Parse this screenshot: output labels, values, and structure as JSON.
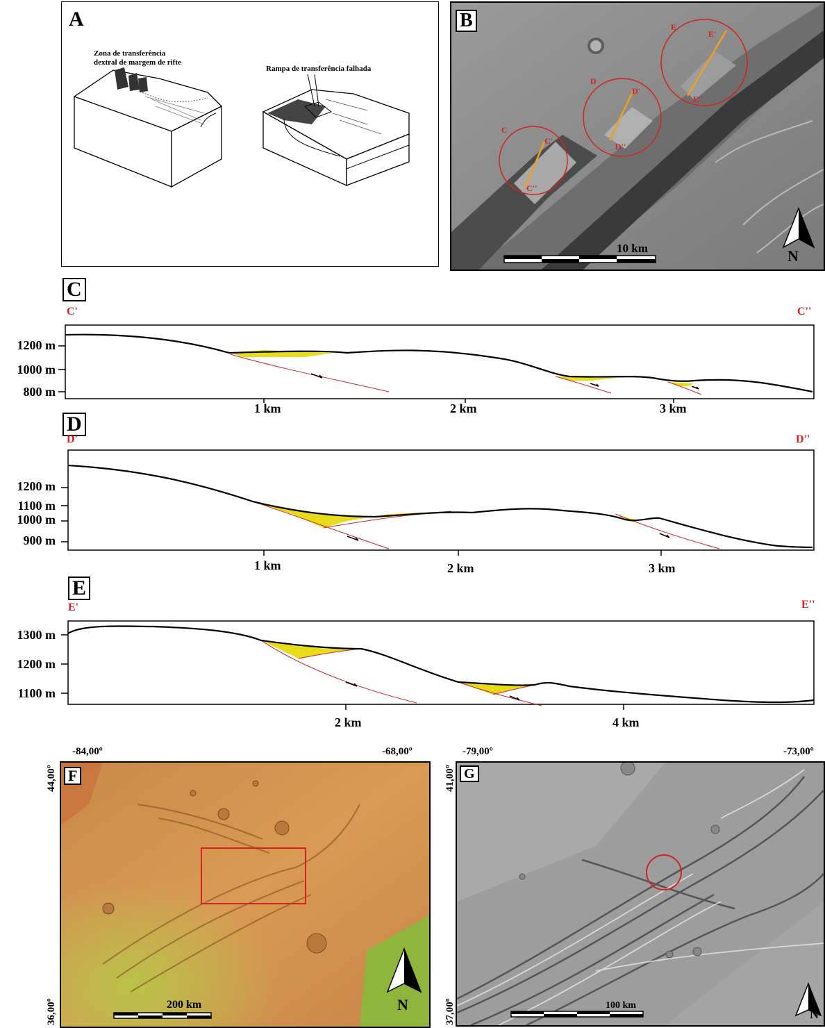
{
  "panels": {
    "a": {
      "letter": "A",
      "label_left": "Zona de transferência\ndextral de margem de rifte",
      "label_right": "Rampa de transferência falhada"
    },
    "b": {
      "letter": "B",
      "circle_labels": [
        "C",
        "C'",
        "C''",
        "D",
        "D'",
        "D''",
        "E",
        "E'",
        "E''"
      ],
      "scale": "10 km",
      "north": "N"
    },
    "c": {
      "letter": "C",
      "left_end": "C'",
      "right_end": "C''",
      "elevations": [
        "1200 m",
        "1000 m",
        "800 m"
      ],
      "distances": [
        "1 km",
        "2 km",
        "3 km"
      ]
    },
    "d": {
      "letter": "D",
      "left_end": "D'",
      "right_end": "D''",
      "elevations": [
        "1200 m",
        "1100 m",
        "1000 m",
        "900 m"
      ],
      "distances": [
        "1 km",
        "2 km",
        "3 km"
      ]
    },
    "e": {
      "letter": "E",
      "left_end": "E'",
      "right_end": "E''",
      "elevations": [
        "1300 m",
        "1200 m",
        "1100 m"
      ],
      "distances": [
        "2 km",
        "4 km"
      ]
    },
    "f": {
      "letter": "F",
      "lon_left": "-84,00º",
      "lon_right": "-68,00º",
      "lat_top": "44,00º",
      "lat_bottom": "36,00º",
      "scale": "200 km",
      "north": "N"
    },
    "g": {
      "letter": "G",
      "lon_left": "-79,00º",
      "lon_right": "-73,00º",
      "lat_top": "41,00º",
      "lat_bottom": "37,00º",
      "scale": "100 km",
      "north": "N"
    }
  },
  "colors": {
    "fill_sediment": "#e6dc1a",
    "fault_line": "#d32222",
    "profile": "#000000",
    "track": "#f0a020",
    "circle": "#d32222"
  }
}
